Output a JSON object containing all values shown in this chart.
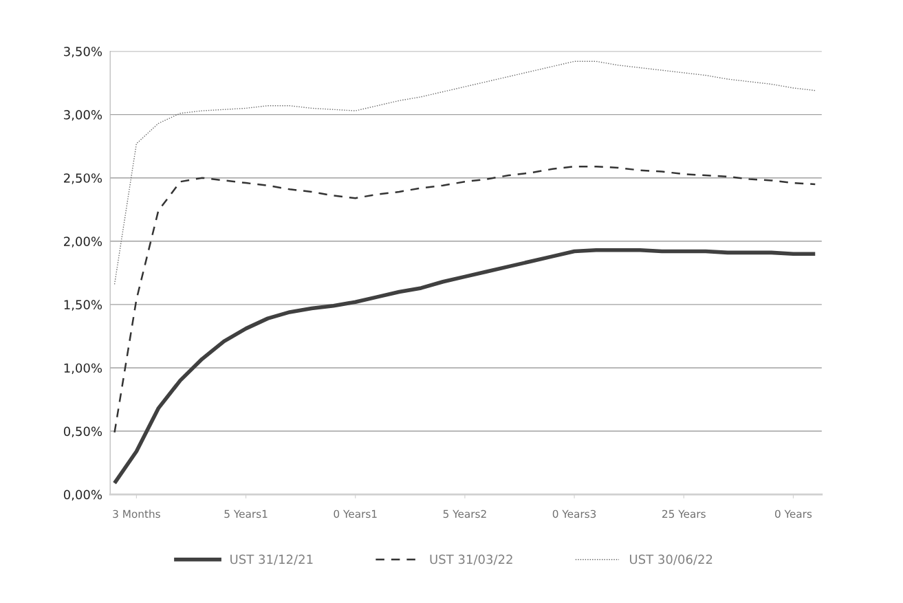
{
  "chart_data": {
    "type": "line",
    "ylim": [
      0,
      3.5
    ],
    "yticks": [
      {
        "value": 0,
        "label": "0,00%"
      },
      {
        "value": 0.5,
        "label": "0,50%"
      },
      {
        "value": 1.0,
        "label": "1,00%"
      },
      {
        "value": 1.5,
        "label": "1,50%"
      },
      {
        "value": 2.0,
        "label": "2,00%"
      },
      {
        "value": 2.5,
        "label": "2,50%"
      },
      {
        "value": 3.0,
        "label": "3,00%"
      },
      {
        "value": 3.5,
        "label": "3,50%"
      }
    ],
    "categories": [
      null,
      "3 Months",
      null,
      null,
      null,
      null,
      "5 Years1",
      null,
      null,
      null,
      null,
      "0 Years1",
      null,
      null,
      null,
      null,
      "5 Years2",
      null,
      null,
      null,
      null,
      "0 Years3",
      null,
      null,
      null,
      null,
      "25 Years",
      null,
      null,
      null,
      null,
      "0 Years",
      null
    ],
    "grid": "y",
    "legend": "bottom",
    "marker": "none",
    "series": [
      {
        "name": "UST 31/12/21",
        "color": "#404040",
        "line_style": "solid",
        "values": [
          0.09,
          0.34,
          0.68,
          0.9,
          1.07,
          1.21,
          1.31,
          1.39,
          1.44,
          1.47,
          1.49,
          1.52,
          1.56,
          1.6,
          1.63,
          1.68,
          1.72,
          1.76,
          1.8,
          1.84,
          1.88,
          1.92,
          1.93,
          1.93,
          1.93,
          1.92,
          1.92,
          1.92,
          1.91,
          1.91,
          1.91,
          1.9,
          1.9
        ]
      },
      {
        "name": "UST 31/03/22",
        "color": "#333333",
        "line_style": "dashed",
        "values": [
          0.49,
          1.54,
          2.24,
          2.47,
          2.5,
          2.48,
          2.46,
          2.44,
          2.41,
          2.39,
          2.36,
          2.34,
          2.37,
          2.39,
          2.42,
          2.44,
          2.47,
          2.49,
          2.52,
          2.54,
          2.57,
          2.59,
          2.59,
          2.58,
          2.56,
          2.55,
          2.53,
          2.52,
          2.51,
          2.49,
          2.48,
          2.46,
          2.45
        ]
      },
      {
        "name": "UST 30/06/22",
        "color": "#666666",
        "line_style": "dotted",
        "values": [
          1.66,
          2.77,
          2.93,
          3.01,
          3.03,
          3.04,
          3.05,
          3.07,
          3.07,
          3.05,
          3.04,
          3.03,
          3.07,
          3.11,
          3.14,
          3.18,
          3.22,
          3.26,
          3.3,
          3.34,
          3.38,
          3.42,
          3.42,
          3.39,
          3.37,
          3.35,
          3.33,
          3.31,
          3.28,
          3.26,
          3.24,
          3.21,
          3.19
        ]
      }
    ]
  }
}
